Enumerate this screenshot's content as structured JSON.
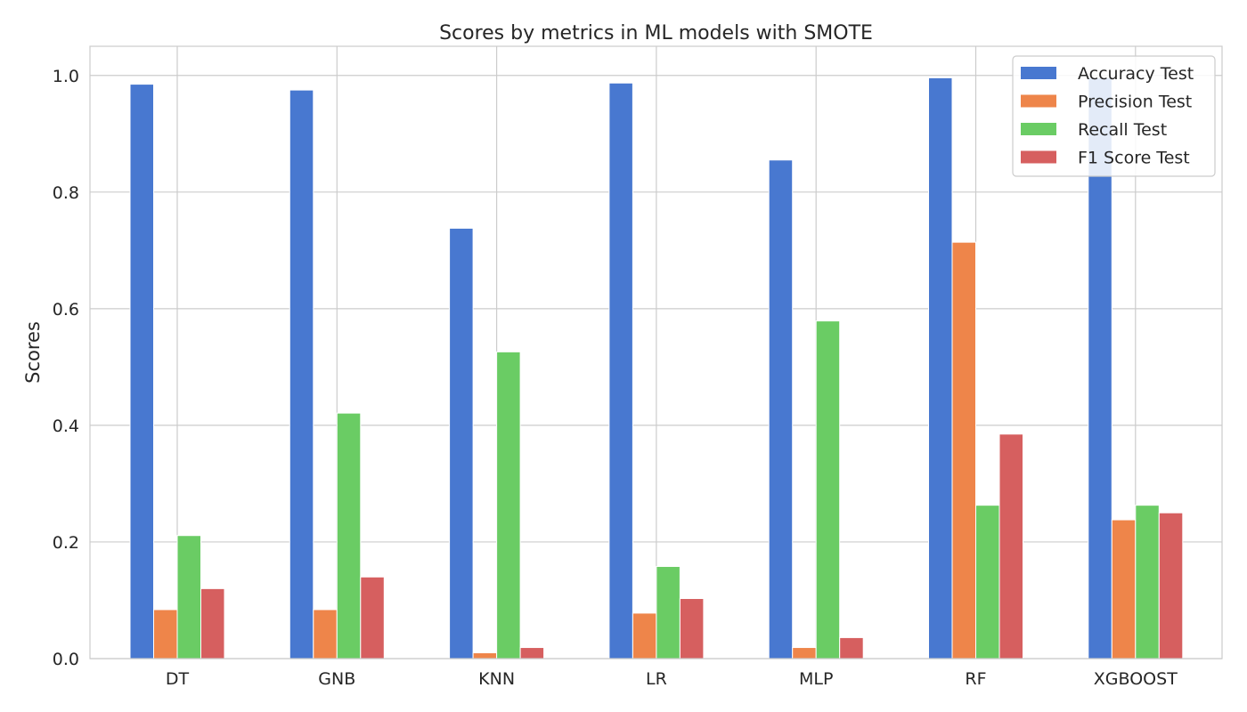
{
  "chart_data": {
    "type": "bar",
    "title": "Scores by metrics in ML models with SMOTE",
    "xlabel": "",
    "ylabel": "Scores",
    "ylim": [
      0,
      1.05
    ],
    "yticks": [
      "0.0",
      "0.2",
      "0.4",
      "0.6",
      "0.8",
      "1.0"
    ],
    "ytick_values": [
      0,
      0.2,
      0.4,
      0.6,
      0.8,
      1.0
    ],
    "grid": true,
    "legend_position": "top-right",
    "categories": [
      "DT",
      "GNB",
      "KNN",
      "LR",
      "MLP",
      "RF",
      "XGBOOST"
    ],
    "series": [
      {
        "name": "Accuracy Test",
        "color": "#4878d0",
        "values": [
          0.985,
          0.975,
          0.738,
          0.987,
          0.855,
          0.996,
          0.996
        ]
      },
      {
        "name": "Precision Test",
        "color": "#ee854a",
        "values": [
          0.084,
          0.084,
          0.01,
          0.078,
          0.019,
          0.714,
          0.238
        ]
      },
      {
        "name": "Recall Test",
        "color": "#6acc64",
        "values": [
          0.211,
          0.421,
          0.526,
          0.158,
          0.579,
          0.263,
          0.263
        ]
      },
      {
        "name": "F1 Score Test",
        "color": "#d65f5f",
        "values": [
          0.12,
          0.14,
          0.019,
          0.103,
          0.036,
          0.385,
          0.25
        ]
      }
    ]
  }
}
